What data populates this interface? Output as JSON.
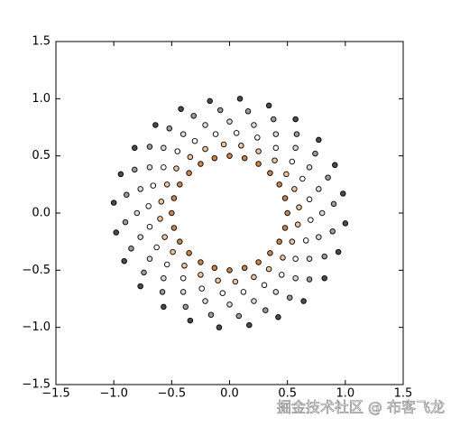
{
  "chart_data": {
    "type": "scatter",
    "xlim": [
      -1.5,
      1.5
    ],
    "ylim": [
      -1.5,
      1.5
    ],
    "xticks": [
      {
        "value": -1.5,
        "label": "−1.5"
      },
      {
        "value": -1.0,
        "label": "−1.0"
      },
      {
        "value": -0.5,
        "label": "−0.5"
      },
      {
        "value": 0,
        "label": "0.0"
      },
      0.5,
      {
        "value": 1.0,
        "label": "1.0"
      },
      1.5
    ],
    "yticks": [
      {
        "value": -1.5,
        "label": "−1.5"
      },
      {
        "value": -1.0,
        "label": "−1.0"
      },
      {
        "value": -0.5,
        "label": "−0.5"
      },
      {
        "value": 0,
        "label": "0.0"
      },
      0.5,
      {
        "value": 1.0,
        "label": "1.0"
      },
      1.5
    ],
    "series": [
      {
        "color": "#c9844c",
        "x": [
          0.5,
          0.48,
          0.43,
          0.35,
          0.25,
          0.13,
          0,
          -0.13,
          -0.25,
          -0.35,
          -0.43,
          -0.48,
          -0.5,
          -0.48,
          -0.43,
          -0.35,
          -0.25,
          -0.13,
          0,
          0.13,
          0.25,
          0.35,
          0.43,
          0.48
        ],
        "y": [
          0,
          0.13,
          0.25,
          0.35,
          0.43,
          0.48,
          0.5,
          0.48,
          0.43,
          0.35,
          0.25,
          0.13,
          0,
          -0.13,
          -0.25,
          -0.35,
          -0.43,
          -0.48,
          -0.5,
          -0.48,
          -0.43,
          -0.35,
          -0.25,
          -0.13
        ]
      },
      {
        "color": "#efc59b",
        "x": [
          0.6,
          0.56,
          0.49,
          0.39,
          0.25,
          0.1,
          -0.05,
          -0.21,
          -0.34,
          -0.46,
          -0.54,
          -0.59,
          -0.6,
          -0.56,
          -0.49,
          -0.39,
          -0.25,
          -0.1,
          0.05,
          0.21,
          0.34,
          0.46,
          0.54,
          0.59
        ],
        "y": [
          0.05,
          0.21,
          0.34,
          0.46,
          0.54,
          0.59,
          0.6,
          0.56,
          0.49,
          0.39,
          0.25,
          0.1,
          -0.05,
          -0.21,
          -0.34,
          -0.46,
          -0.54,
          -0.59,
          -0.6,
          -0.56,
          -0.49,
          -0.39,
          -0.25,
          -0.1
        ]
      },
      {
        "color": "#ffffff",
        "x": [
          0.69,
          0.63,
          0.54,
          0.4,
          0.24,
          0.06,
          -0.12,
          -0.3,
          -0.45,
          -0.57,
          -0.66,
          -0.7,
          -0.69,
          -0.63,
          -0.54,
          -0.4,
          -0.24,
          -0.06,
          0.12,
          0.3,
          0.45,
          0.57,
          0.66,
          0.7
        ],
        "y": [
          0.12,
          0.3,
          0.45,
          0.57,
          0.66,
          0.7,
          0.69,
          0.63,
          0.54,
          0.4,
          0.24,
          0.06,
          -0.12,
          -0.3,
          -0.45,
          -0.57,
          -0.66,
          -0.7,
          -0.69,
          -0.63,
          -0.54,
          -0.4,
          -0.24,
          -0.06
        ]
      },
      {
        "color": "#dadada",
        "x": [
          0.8,
          0.77,
          0.69,
          0.57,
          0.4,
          0.21,
          0,
          -0.21,
          -0.4,
          -0.57,
          -0.69,
          -0.77,
          -0.8,
          -0.77,
          -0.69,
          -0.57,
          -0.4,
          -0.21,
          0,
          0.21,
          0.4,
          0.57,
          0.69,
          0.77
        ],
        "y": [
          0,
          0.21,
          0.4,
          0.57,
          0.69,
          0.77,
          0.8,
          0.77,
          0.69,
          0.57,
          0.4,
          0.21,
          0,
          -0.21,
          -0.4,
          -0.57,
          -0.69,
          -0.77,
          -0.8,
          -0.77,
          -0.69,
          -0.57,
          -0.4,
          -0.21
        ]
      },
      {
        "color": "#9a9a9a",
        "x": [
          0.9,
          0.85,
          0.74,
          0.58,
          0.38,
          0.16,
          -0.08,
          -0.31,
          -0.52,
          -0.69,
          -0.82,
          -0.89,
          -0.9,
          -0.85,
          -0.74,
          -0.58,
          -0.38,
          -0.16,
          0.08,
          0.31,
          0.52,
          0.69,
          0.82,
          0.89
        ],
        "y": [
          0.08,
          0.31,
          0.52,
          0.69,
          0.82,
          0.89,
          0.9,
          0.85,
          0.74,
          0.58,
          0.38,
          0.16,
          -0.08,
          -0.31,
          -0.52,
          -0.69,
          -0.82,
          -0.89,
          -0.9,
          -0.85,
          -0.74,
          -0.58,
          -0.38,
          -0.16
        ]
      },
      {
        "color": "#4a4a4a",
        "x": [
          0.98,
          0.91,
          0.77,
          0.57,
          0.34,
          0.09,
          -0.17,
          -0.42,
          -0.64,
          -0.82,
          -0.94,
          -1.0,
          -0.98,
          -0.91,
          -0.77,
          -0.57,
          -0.34,
          -0.09,
          0.17,
          0.42,
          0.64,
          0.82,
          0.94,
          1.0
        ],
        "y": [
          0.17,
          0.42,
          0.64,
          0.82,
          0.94,
          1.0,
          0.98,
          0.91,
          0.77,
          0.57,
          0.34,
          0.09,
          -0.17,
          -0.42,
          -0.64,
          -0.82,
          -0.94,
          -1.0,
          -0.98,
          -0.91,
          -0.77,
          -0.57,
          -0.34,
          -0.09
        ]
      }
    ]
  },
  "watermark": "掘金技术社区 @ 布客飞龙"
}
